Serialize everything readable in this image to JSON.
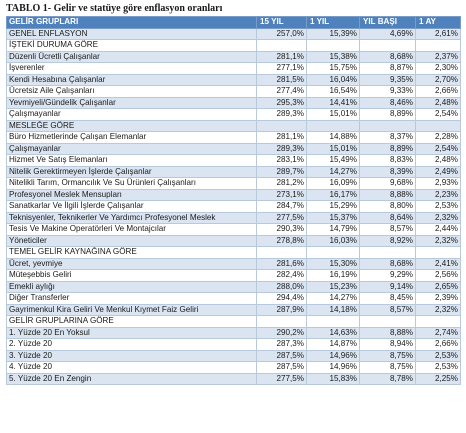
{
  "title": "TABLO 1- Gelir ve statüye göre enflasyon oranları",
  "headers": [
    "GELİR GRUPLARI",
    "15 YIL",
    "1 YIL",
    "YIL BAŞI",
    "1 AY"
  ],
  "rows": [
    {
      "label": "GENEL ENFLASYON",
      "v": [
        "257,0%",
        "15,39%",
        "4,69%",
        "2,61%"
      ],
      "type": "data"
    },
    {
      "label": "İŞTEKİ DURUMA GÖRE",
      "v": [],
      "type": "section"
    },
    {
      "label": "Düzenli Ücretli Çalışanlar",
      "v": [
        "281,1%",
        "15,38%",
        "8,68%",
        "2,37%"
      ],
      "type": "data"
    },
    {
      "label": "İşverenler",
      "v": [
        "277,1%",
        "15,75%",
        "8,87%",
        "2,30%"
      ],
      "type": "data"
    },
    {
      "label": "Kendi Hesabına Çalışanlar",
      "v": [
        "281,5%",
        "16,04%",
        "9,35%",
        "2,70%"
      ],
      "type": "data"
    },
    {
      "label": "Ücretsiz Aile Çalışanları",
      "v": [
        "277,4%",
        "16,54%",
        "9,33%",
        "2,66%"
      ],
      "type": "data"
    },
    {
      "label": "Yevmiyeli/Gündelik Çalışanlar",
      "v": [
        "295,3%",
        "14,41%",
        "8,46%",
        "2,48%"
      ],
      "type": "data"
    },
    {
      "label": "Çalışmayanlar",
      "v": [
        "289,3%",
        "15,01%",
        "8,89%",
        "2,54%"
      ],
      "type": "data"
    },
    {
      "label": "MESLEĞE GÖRE",
      "v": [],
      "type": "section"
    },
    {
      "label": "Büro Hizmetlerinde Çalışan Elemanlar",
      "v": [
        "281,1%",
        "14,88%",
        "8,37%",
        "2,28%"
      ],
      "type": "data"
    },
    {
      "label": "Çalışmayanlar",
      "v": [
        "289,3%",
        "15,01%",
        "8,89%",
        "2,54%"
      ],
      "type": "data"
    },
    {
      "label": "Hizmet Ve Satış Elemanları",
      "v": [
        "283,1%",
        "15,49%",
        "8,83%",
        "2,48%"
      ],
      "type": "data"
    },
    {
      "label": "Nitelik Gerektirmeyen İşlerde Çalışanlar",
      "v": [
        "289,7%",
        "14,27%",
        "8,39%",
        "2,49%"
      ],
      "type": "data"
    },
    {
      "label": "Nitelikli Tarım, Ormancılık Ve Su Ürünleri Çalışanları",
      "v": [
        "281,2%",
        "16,09%",
        "9,68%",
        "2,93%"
      ],
      "type": "data"
    },
    {
      "label": "Profesyonel Meslek Mensupları",
      "v": [
        "273,1%",
        "16,17%",
        "8,88%",
        "2,23%"
      ],
      "type": "data"
    },
    {
      "label": "Sanatkarlar Ve İlgili İşlerde Çalışanlar",
      "v": [
        "284,7%",
        "15,29%",
        "8,80%",
        "2,53%"
      ],
      "type": "data"
    },
    {
      "label": "Teknisyenler, Teknikerler Ve Yardımcı Profesyonel Meslek",
      "v": [
        "277,5%",
        "15,37%",
        "8,64%",
        "2,32%"
      ],
      "type": "data"
    },
    {
      "label": "Tesis Ve Makine Operatörleri Ve Montajcılar",
      "v": [
        "290,3%",
        "14,79%",
        "8,57%",
        "2,44%"
      ],
      "type": "data"
    },
    {
      "label": "Yöneticiler",
      "v": [
        "278,8%",
        "16,03%",
        "8,92%",
        "2,32%"
      ],
      "type": "data"
    },
    {
      "label": "TEMEL GELİR KAYNAĞINA GÖRE",
      "v": [],
      "type": "section"
    },
    {
      "label": "Ücret, yevmiye",
      "v": [
        "281,6%",
        "15,30%",
        "8,68%",
        "2,41%"
      ],
      "type": "data"
    },
    {
      "label": "Müteşebbis Geliri",
      "v": [
        "282,4%",
        "16,19%",
        "9,29%",
        "2,56%"
      ],
      "type": "data"
    },
    {
      "label": "Emekli aylığı",
      "v": [
        "288,0%",
        "15,23%",
        "9,14%",
        "2,65%"
      ],
      "type": "data"
    },
    {
      "label": "Diğer Transferler",
      "v": [
        "294,4%",
        "14,27%",
        "8,45%",
        "2,39%"
      ],
      "type": "data"
    },
    {
      "label": "Gayrimenkul Kira Geliri Ve Menkul Kıymet Faiz Geliri",
      "v": [
        "287,9%",
        "14,18%",
        "8,57%",
        "2,32%"
      ],
      "type": "data"
    },
    {
      "label": "GELİR GRUPLARINA GÖRE",
      "v": [],
      "type": "section"
    },
    {
      "label": "1. Yüzde 20 En Yoksul",
      "v": [
        "290,2%",
        "14,63%",
        "8,88%",
        "2,74%"
      ],
      "type": "data"
    },
    {
      "label": "2. Yüzde 20",
      "v": [
        "287,3%",
        "14,87%",
        "8,94%",
        "2,66%"
      ],
      "type": "data"
    },
    {
      "label": "3. Yüzde 20",
      "v": [
        "287,5%",
        "14,96%",
        "8,75%",
        "2,53%"
      ],
      "type": "data"
    },
    {
      "label": "4. Yüzde 20",
      "v": [
        "287,5%",
        "14,96%",
        "8,75%",
        "2,53%"
      ],
      "type": "data"
    },
    {
      "label": "5. Yüzde 20 En Zengin",
      "v": [
        "277,5%",
        "15,83%",
        "8,78%",
        "2,25%"
      ],
      "type": "data"
    }
  ]
}
